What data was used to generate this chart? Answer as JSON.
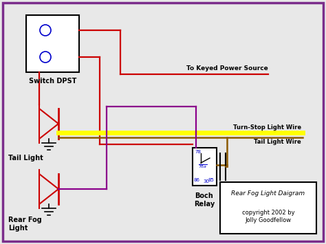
{
  "bg_color": "#e8e8e8",
  "border_color": "#7b2d8b",
  "title": "Rear Fog Light Daigram",
  "copyright": "copyright 2002 by\nJolly Goodfellow",
  "switch_label": "Switch DPST",
  "tail_light_label": "Tail Light",
  "fog_light_label": "Rear Fog\nLight",
  "relay_label": "Boch\nRelay",
  "power_label": "To Keyed Power Source",
  "turn_stop_label": "Turn-Stop Light Wire",
  "tail_wire_label": "Tail Light Wire",
  "red": "#cc0000",
  "yellow": "#ffff00",
  "brown": "#8b5a00",
  "purple": "#8b008b",
  "blue": "#0000cc",
  "black": "#000000",
  "white": "#ffffff",
  "fig_w": 4.74,
  "fig_h": 3.55,
  "dpi": 100
}
